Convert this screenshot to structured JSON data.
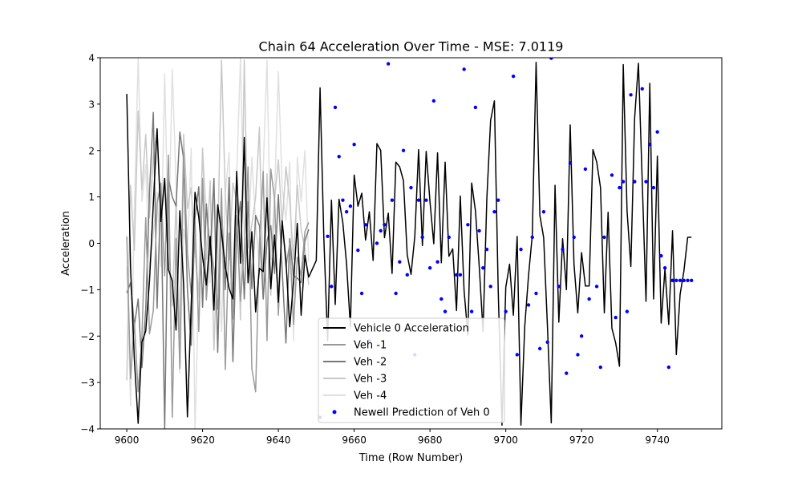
{
  "chart_data": {
    "type": "line",
    "title": "Chain 64 Acceleration Over Time - MSE: 7.0119",
    "xlabel": "Time (Row Number)",
    "ylabel": "Acceleration",
    "xlim": [
      9593,
      9757
    ],
    "ylim": [
      -4,
      4
    ],
    "xticks": [
      9600,
      9620,
      9640,
      9660,
      9680,
      9700,
      9720,
      9740
    ],
    "xtick_labels": [
      "9600",
      "9620",
      "9640",
      "9660",
      "9680",
      "9700",
      "9720",
      "9740"
    ],
    "yticks": [
      -4,
      -3,
      -2,
      -1,
      0,
      1,
      2,
      3,
      4
    ],
    "ytick_labels": [
      "−4",
      "−3",
      "−2",
      "−1",
      "0",
      "1",
      "2",
      "3",
      "4"
    ],
    "grid": false,
    "legend_position": "lower-center",
    "series": [
      {
        "name": "Vehicle 0 Acceleration",
        "kind": "line",
        "color": "#000000",
        "x_start": 9600,
        "values": [
          3.22,
          -0.53,
          -2.5,
          -3.88,
          -2.13,
          -1.89,
          -0.81,
          0.85,
          2.47,
          0.47,
          1.4,
          -0.57,
          -0.81,
          -1.87,
          0.7,
          -0.9,
          -3.74,
          -1.32,
          1.1,
          0.56,
          -0.3,
          -0.9,
          0.15,
          -1.44,
          0.83,
          0.23,
          -0.5,
          -0.97,
          -1.2,
          1.55,
          -0.43,
          2.28,
          -0.85,
          0.25,
          -1.48,
          -0.54,
          -0.61,
          0.98,
          -0.98,
          0.18,
          -1.27,
          0.48,
          -0.38,
          -1.8,
          -0.82,
          0.43,
          -1.55,
          -0.26,
          -0.73,
          -0.55,
          -0.37,
          3.35,
          0.1,
          -2.1,
          0.93,
          -1.32,
          0.95,
          0.45,
          -0.45,
          -1.8,
          1.47,
          0.8,
          1.08,
          0.07,
          0.68,
          -0.37,
          2.15,
          2.0,
          0.12,
          0.65,
          -0.65,
          1.75,
          1.65,
          1.35,
          -0.25,
          -0.67,
          0.15,
          2.02,
          -0.05,
          1.98,
          0.9,
          -0.01,
          1.95,
          -0.42,
          1.75,
          -0.28,
          -0.12,
          -1.45,
          1.02,
          -1.02,
          -1.98,
          1.3,
          0.7,
          -0.5,
          -1.9,
          0.95,
          2.65,
          3.07,
          -1.0,
          -3.92,
          -0.95,
          -0.45,
          -1.55,
          0.15,
          -3.92,
          -1.8,
          -0.7,
          0.18,
          3.9,
          0.6,
          0.12,
          -1.8,
          -3.87,
          1.25,
          -1.7,
          0.1,
          -1.0,
          2.55,
          -0.45,
          -1.5,
          -0.2,
          -0.92,
          -0.92,
          2.02,
          1.75,
          1.2,
          -1.5,
          0.67,
          -1.83,
          -2.15,
          -2.65,
          3.85,
          0.7,
          -0.5,
          2.7,
          3.88,
          1.35,
          -1.25,
          3.45,
          -1.2,
          1.88,
          -1.72,
          -0.55,
          -1.75,
          0.27,
          -2.4,
          -1.1,
          -0.6,
          0.13,
          0.13
        ]
      },
      {
        "name": "Veh -1",
        "kind": "line",
        "color": "#999999",
        "x_start": 9600,
        "values": [
          0.15,
          -2.92,
          -1.7,
          -3.2,
          -2.0,
          0.55,
          -1.95,
          -1.45,
          0.85,
          1.3,
          -0.7,
          1.9,
          -3.75,
          0.1,
          -2.7,
          1.95,
          -0.2,
          -1.1,
          0.5,
          -1.9,
          1.4,
          -1.22,
          0.05,
          -0.55,
          -1.42,
          1.18,
          -2.72,
          0.22,
          -1.63,
          0.6,
          -1.25,
          -0.15,
          1.65,
          -2.7,
          -3.2,
          0.05,
          1.55,
          -2.1,
          1.6,
          0.95,
          -1.55,
          0.5,
          -0.5,
          0.0,
          -1.75,
          -0.3,
          -0.7,
          0.25,
          0.45
        ]
      },
      {
        "name": "Veh -2",
        "kind": "line",
        "color": "#777777",
        "x_start": 9600,
        "values": [
          -1.07,
          -0.85,
          -1.78,
          -1.2,
          -2.68,
          -1.42,
          1.1,
          2.82,
          -1.4,
          1.2,
          -4.0,
          1.4,
          1.0,
          0.8,
          2.4,
          1.82,
          -1.0,
          -2.2,
          0.55,
          1.22,
          -1.38,
          0.85,
          -0.25,
          1.4,
          -2.35,
          0.8,
          -1.0,
          1.42,
          -2.55,
          0.25,
          0.9,
          -1.2,
          0.9,
          -0.98,
          0.6,
          0.38,
          -1.2,
          0.05,
          0.38,
          -0.65,
          1.05,
          -0.58,
          -2.15,
          0.1,
          -0.7,
          -0.75,
          -0.85,
          0.05,
          0.3
        ]
      },
      {
        "name": "Veh -3",
        "kind": "line",
        "color": "#c8c8c8",
        "x_start": 9600,
        "values": [
          -2.95,
          1.25,
          -0.15,
          2.85,
          1.15,
          2.35,
          0.55,
          1.85,
          2.45,
          0.5,
          1.3,
          0.25,
          -1.35,
          0.85,
          -2.05,
          2.35,
          0.75,
          1.2,
          -0.15,
          -1.15,
          2.05,
          -0.35,
          1.35,
          -2.3,
          0.05,
          3.95,
          1.05,
          -0.35,
          1.3,
          0.9,
          -1.65,
          3.95,
          -0.1,
          0.4,
          1.0,
          2.5,
          -1.2,
          1.5,
          -1.12,
          0.95,
          1.8,
          0.4,
          1.65,
          0.9,
          -0.35,
          1.25,
          0.3,
          -0.12,
          -0.9
        ]
      },
      {
        "name": "Veh -4",
        "kind": "line",
        "color": "#e0e0e0",
        "x_start": 9600,
        "values": [
          -0.5,
          -3.5,
          0.7,
          4.0,
          0.9,
          1.7,
          -0.6,
          0.2,
          1.1,
          -0.5,
          3.65,
          -0.1,
          3.75,
          1.3,
          -2.8,
          0.3,
          -0.2,
          2.05,
          -4.0,
          -0.85,
          2.05,
          0.7,
          -0.85,
          1.1,
          0.1,
          -1.9,
          1.1,
          1.95,
          -1.3,
          1.45,
          4.0,
          0.2,
          -0.05,
          1.85,
          0.45,
          -0.55,
          1.6,
          3.95,
          -0.35,
          1.05,
          3.7,
          1.2,
          0.5,
          1.75,
          -2.1,
          1.85,
          0.9,
          2.0,
          -0.4
        ]
      },
      {
        "name": "Newell Prediction of Veh 0",
        "kind": "scatter",
        "color": "#0000ff",
        "points": [
          [
            9651,
            -3.75
          ],
          [
            9653,
            0.15
          ],
          [
            9654,
            -0.93
          ],
          [
            9655,
            2.93
          ],
          [
            9656,
            1.87
          ],
          [
            9657,
            0.93
          ],
          [
            9658,
            0.68
          ],
          [
            9659,
            0.8
          ],
          [
            9660,
            2.13
          ],
          [
            9661,
            -0.15
          ],
          [
            9662,
            -1.08
          ],
          [
            9663,
            0.4
          ],
          [
            9664,
            -2.1
          ],
          [
            9666,
            0.0
          ],
          [
            9667,
            0.27
          ],
          [
            9668,
            0.4
          ],
          [
            9669,
            3.87
          ],
          [
            9670,
            0.93
          ],
          [
            9671,
            -1.08
          ],
          [
            9672,
            -0.4
          ],
          [
            9673,
            2.0
          ],
          [
            9674,
            -0.68
          ],
          [
            9675,
            1.2
          ],
          [
            9676,
            -2.4
          ],
          [
            9677,
            0.93
          ],
          [
            9678,
            0.13
          ],
          [
            9679,
            0.93
          ],
          [
            9680,
            -0.53
          ],
          [
            9681,
            3.07
          ],
          [
            9682,
            -0.4
          ],
          [
            9683,
            -1.2
          ],
          [
            9684,
            -1.47
          ],
          [
            9685,
            0.13
          ],
          [
            9687,
            -0.68
          ],
          [
            9688,
            -0.68
          ],
          [
            9689,
            3.75
          ],
          [
            9690,
            0.4
          ],
          [
            9691,
            -1.47
          ],
          [
            9692,
            2.93
          ],
          [
            9693,
            0.27
          ],
          [
            9694,
            -0.53
          ],
          [
            9695,
            -0.13
          ],
          [
            9696,
            -0.93
          ],
          [
            9697,
            0.68
          ],
          [
            9698,
            0.93
          ],
          [
            9700,
            -1.47
          ],
          [
            9702,
            3.6
          ],
          [
            9703,
            -2.4
          ],
          [
            9704,
            -0.13
          ],
          [
            9706,
            -1.33
          ],
          [
            9707,
            0.13
          ],
          [
            9708,
            -1.08
          ],
          [
            9709,
            -2.27
          ],
          [
            9710,
            0.68
          ],
          [
            9711,
            -2.13
          ],
          [
            9712,
            3.99
          ],
          [
            9714,
            -0.93
          ],
          [
            9715,
            -0.13
          ],
          [
            9716,
            -2.8
          ],
          [
            9717,
            1.73
          ],
          [
            9718,
            0.13
          ],
          [
            9719,
            -2.4
          ],
          [
            9720,
            -2.0
          ],
          [
            9721,
            1.6
          ],
          [
            9722,
            -1.2
          ],
          [
            9724,
            -0.93
          ],
          [
            9725,
            -2.67
          ],
          [
            9726,
            0.13
          ],
          [
            9728,
            1.47
          ],
          [
            9729,
            -1.6
          ],
          [
            9730,
            1.2
          ],
          [
            9731,
            1.33
          ],
          [
            9732,
            -1.47
          ],
          [
            9733,
            3.2
          ],
          [
            9734,
            1.33
          ],
          [
            9736,
            3.33
          ],
          [
            9737,
            1.33
          ],
          [
            9738,
            2.13
          ],
          [
            9739,
            1.2
          ],
          [
            9740,
            2.4
          ],
          [
            9741,
            -0.27
          ],
          [
            9742,
            -0.53
          ],
          [
            9743,
            -2.67
          ],
          [
            9744,
            -0.8
          ],
          [
            9745,
            -0.8
          ],
          [
            9746,
            -0.8
          ],
          [
            9747,
            -0.8
          ],
          [
            9748,
            -0.8
          ],
          [
            9749,
            -0.8
          ]
        ]
      }
    ]
  }
}
